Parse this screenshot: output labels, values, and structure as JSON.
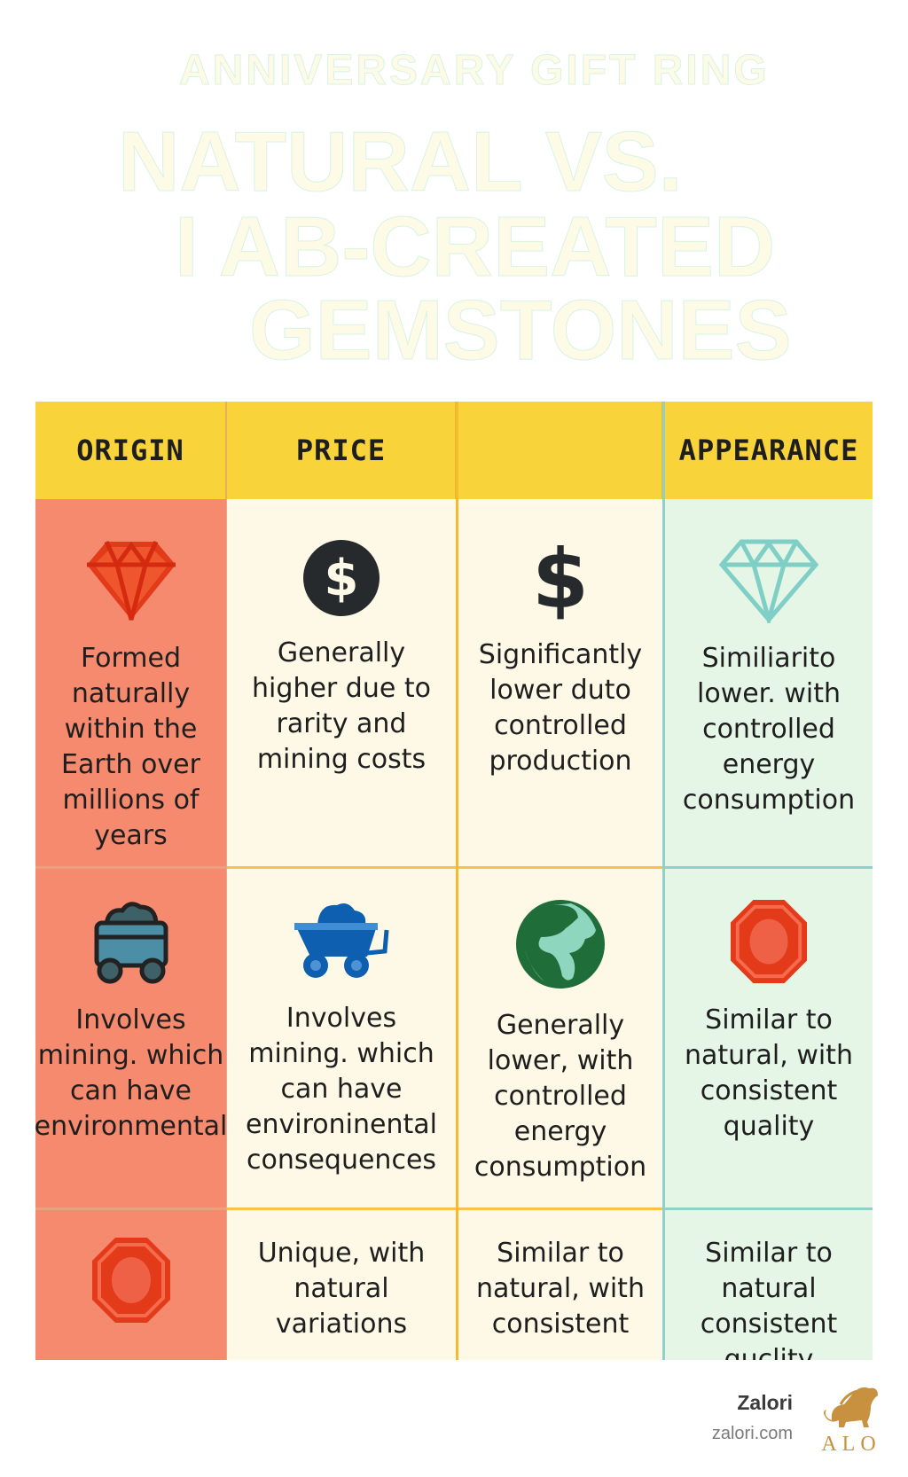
{
  "header": {
    "kicker": "ANNIVERSARY GIFT RING",
    "title_line1": "NATURAL VS.",
    "title_line2": "I AB-CREATED",
    "title_line3": "GEMSTONES"
  },
  "table": {
    "columns": [
      {
        "label": "ORIGIN",
        "color": "#f58a6e"
      },
      {
        "label": "PRICE",
        "color": "#fef9e6"
      },
      {
        "label": "",
        "color": "#fef9e6"
      },
      {
        "label": "APPEARANCE",
        "color": "#e5f6e6"
      }
    ],
    "rows": [
      {
        "cells": [
          {
            "icon": "ruby-diamond-icon",
            "text": "Formed naturally within the Earth over millions of years"
          },
          {
            "icon": "dollar-coin-icon",
            "text": "Generally higher due to rarity and mining costs"
          },
          {
            "icon": "dollar-sign-icon",
            "text": "Significantly lower duto controlled production"
          },
          {
            "icon": "teal-diamond-outline-icon",
            "text": "Similiarito lower. with controlled energy consumption"
          }
        ]
      },
      {
        "cells": [
          {
            "icon": "mine-cart-icon",
            "text": "Involves mining. which can have environmental"
          },
          {
            "icon": "wheelbarrow-icon",
            "text": "Involves mining. which can have environinental consequences"
          },
          {
            "icon": "globe-icon",
            "text": "Generally lower, with controlled energy consumption"
          },
          {
            "icon": "octagon-gem-icon",
            "text": "Similar to natural, with consistent quality"
          }
        ]
      },
      {
        "cells": [
          {
            "icon": "octagon-gem-icon",
            "text": ""
          },
          {
            "icon": "",
            "text": "Unique, with natural variations"
          },
          {
            "icon": "",
            "text": "Similar to natural, with consistent"
          },
          {
            "icon": "",
            "text": "Similar to natural consistent quclity"
          }
        ]
      }
    ]
  },
  "footer": {
    "brand": "Zalori",
    "url": "zalori.com",
    "logo_text": "ALO"
  },
  "colors": {
    "header_yellow": "#f8d33a",
    "origin_red": "#f58a6e",
    "cream": "#fef9e6",
    "mint": "#e5f6e6",
    "logo_gold": "#c7913f"
  }
}
